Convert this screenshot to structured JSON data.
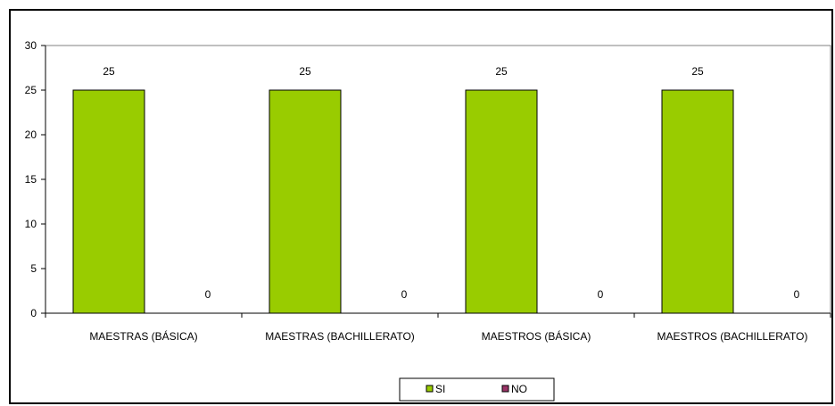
{
  "chart_data": {
    "type": "bar",
    "categories": [
      "MAESTRAS (BÁSICA)",
      "MAESTRAS (BACHILLERATO)",
      "MAESTROS (BÁSICA)",
      "MAESTROS (BACHILLERATO)"
    ],
    "series": [
      {
        "name": "SI",
        "values": [
          25,
          25,
          25,
          25
        ],
        "color": "#99cc00"
      },
      {
        "name": "NO",
        "values": [
          0,
          0,
          0,
          0
        ],
        "color": "#993366"
      }
    ],
    "title": "",
    "xlabel": "",
    "ylabel": "",
    "ylim": [
      0,
      30
    ],
    "yticks": [
      0,
      5,
      10,
      15,
      20,
      25,
      30
    ],
    "grid": false,
    "legend": "bottom-center"
  }
}
